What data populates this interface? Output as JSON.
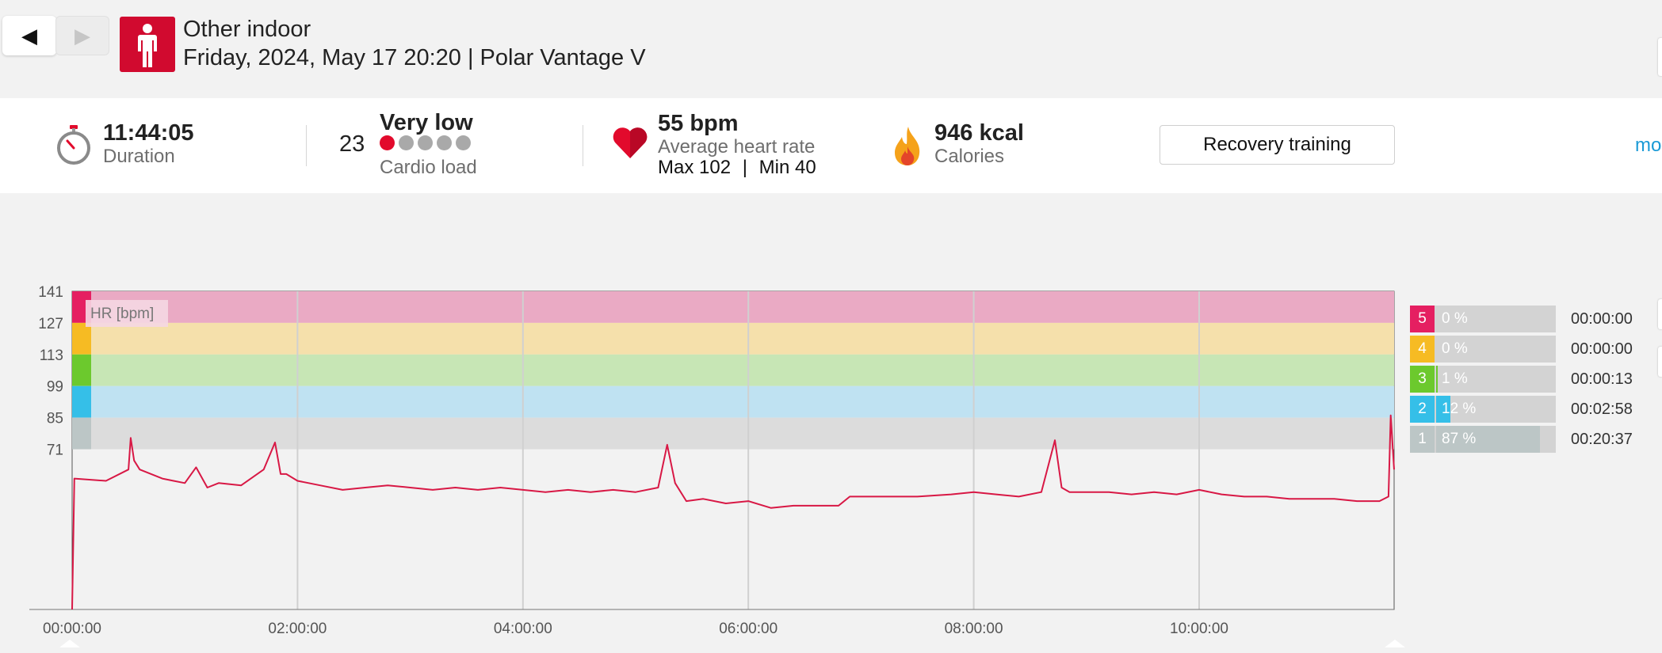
{
  "nav": {
    "back_icon": "◀",
    "forward_icon": "▶"
  },
  "header": {
    "sport_icon": "person-standing-icon",
    "title": "Other indoor",
    "subtitle": "Friday, 2024, May 17 20:20 | Polar Vantage V"
  },
  "summary": {
    "duration_value": "11:44:05",
    "duration_label": "Duration",
    "cardio_value": "23",
    "cardio_level": "Very low",
    "cardio_label": "Cardio load",
    "cardio_dots_filled": 1,
    "cardio_dots_total": 5,
    "hr_avg": "55 bpm",
    "hr_label": "Average heart rate",
    "hr_max": "Max 102",
    "hr_sep": "|",
    "hr_min": "Min 40",
    "calories_value": "946 kcal",
    "calories_label": "Calories",
    "benefit_button": "Recovery training",
    "more_link": "mo"
  },
  "colors": {
    "brand": "#d10a2f",
    "hr_line": "#d81845",
    "zone5": "#e51f61",
    "zone4": "#f6bb23",
    "zone3": "#6cc92d",
    "zone2": "#35bfe8",
    "zone1": "#bcc6c6"
  },
  "chart_data": {
    "type": "line",
    "legend_label": "HR [bpm]",
    "y_ticks": [
      "141",
      "127",
      "113",
      "99",
      "85",
      "71"
    ],
    "x_ticks": [
      "00:00:00",
      "02:00:00",
      "04:00:00",
      "06:00:00",
      "08:00:00",
      "10:00:00"
    ],
    "ylim": [
      0,
      141
    ],
    "x_range_hours": [
      0,
      11.73
    ],
    "zone_bands": [
      {
        "zone": 5,
        "from": 127,
        "to": 141
      },
      {
        "zone": 4,
        "from": 113,
        "to": 127
      },
      {
        "zone": 3,
        "from": 99,
        "to": 113
      },
      {
        "zone": 2,
        "from": 85,
        "to": 99
      },
      {
        "zone": 1,
        "from": 71,
        "to": 85
      }
    ],
    "series": [
      {
        "x": [
          0,
          0.02,
          0.3,
          0.5,
          0.52,
          0.55,
          0.6,
          0.8,
          0.9,
          1.0,
          1.1,
          1.2,
          1.3,
          1.5,
          1.7,
          1.8,
          1.85,
          1.9,
          2.0,
          2.2,
          2.4,
          2.6,
          2.8,
          3.0,
          3.2,
          3.4,
          3.6,
          3.8,
          4.0,
          4.2,
          4.4,
          4.6,
          4.8,
          5.0,
          5.2,
          5.28,
          5.35,
          5.45,
          5.6,
          5.8,
          6.0,
          6.2,
          6.4,
          6.6,
          6.8,
          6.9,
          7.2,
          7.5,
          7.8,
          8.0,
          8.2,
          8.4,
          8.6,
          8.72,
          8.78,
          8.85,
          9.0,
          9.2,
          9.4,
          9.6,
          9.8,
          10.0,
          10.2,
          10.4,
          10.6,
          10.8,
          11.0,
          11.2,
          11.4,
          11.6,
          11.68,
          11.7,
          11.73
        ],
        "y": [
          0,
          58,
          57,
          62,
          76,
          66,
          62,
          58,
          57,
          56,
          63,
          54,
          56,
          55,
          62,
          74,
          60,
          60,
          57,
          55,
          53,
          54,
          55,
          54,
          53,
          54,
          53,
          54,
          53,
          52,
          53,
          52,
          53,
          52,
          54,
          73,
          56,
          48,
          49,
          47,
          48,
          45,
          46,
          46,
          46,
          50,
          50,
          50,
          51,
          52,
          51,
          50,
          52,
          75,
          54,
          52,
          52,
          52,
          51,
          52,
          51,
          53,
          51,
          50,
          50,
          49,
          49,
          49,
          48,
          48,
          50,
          86,
          62
        ]
      }
    ]
  },
  "zones": [
    {
      "num": "5",
      "pct": "0 %",
      "fill": 0,
      "time": "00:00:00"
    },
    {
      "num": "4",
      "pct": "0 %",
      "fill": 0,
      "time": "00:00:00"
    },
    {
      "num": "3",
      "pct": "1 %",
      "fill": 0.01,
      "time": "00:00:13"
    },
    {
      "num": "2",
      "pct": "12 %",
      "fill": 0.12,
      "time": "00:02:58"
    },
    {
      "num": "1",
      "pct": "87 %",
      "fill": 0.87,
      "time": "00:20:37"
    }
  ]
}
